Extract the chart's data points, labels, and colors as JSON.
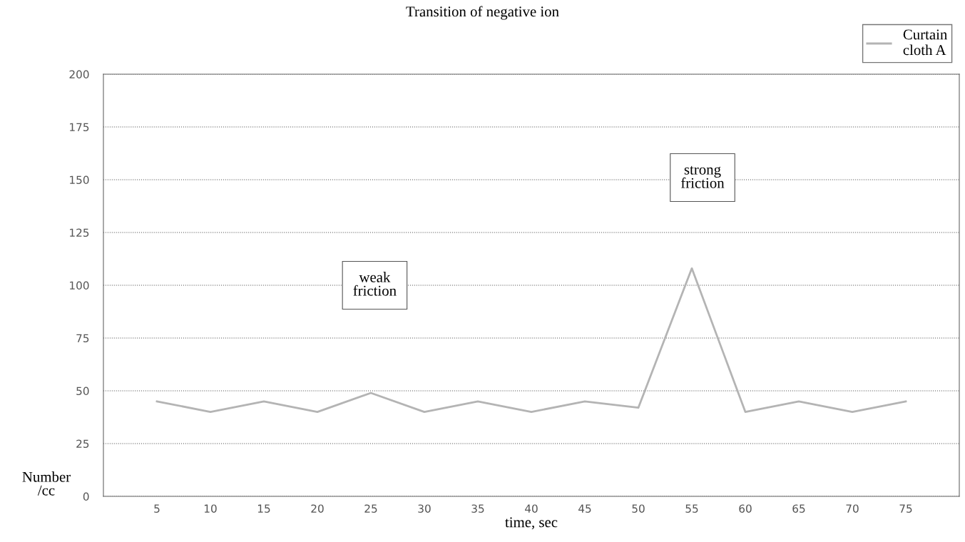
{
  "chart_data": {
    "type": "line",
    "title": "Transition of negative ion",
    "xlabel": "time, sec",
    "ylabel": "Number\n/cc",
    "categories": [
      "5",
      "10",
      "15",
      "20",
      "25",
      "30",
      "35",
      "40",
      "45",
      "50",
      "55",
      "60",
      "65",
      "70",
      "75"
    ],
    "series": [
      {
        "name": "Curtain\ncloth A",
        "color": "#b4b4b4",
        "values": [
          45,
          40,
          45,
          40,
          49,
          40,
          45,
          40,
          45,
          42,
          108,
          40,
          45,
          40,
          45
        ]
      }
    ],
    "ylim": [
      0,
      200
    ],
    "yticks": [
      0,
      25,
      50,
      75,
      100,
      125,
      150,
      175,
      200
    ],
    "grid": "y",
    "legend": "top right",
    "marker": "none",
    "line_style": "solid",
    "annotations": [
      "weak\nfriction",
      "strong\nfriction"
    ]
  }
}
